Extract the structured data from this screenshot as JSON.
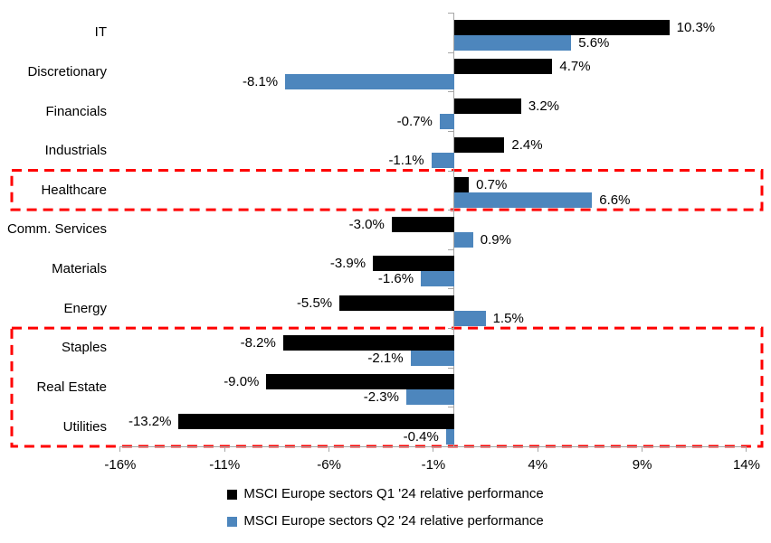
{
  "chart_data": {
    "type": "bar",
    "orientation": "horizontal",
    "title": "",
    "categories": [
      "IT",
      "Discretionary",
      "Financials",
      "Industrials",
      "Healthcare",
      "Comm. Services",
      "Materials",
      "Energy",
      "Staples",
      "Real Estate",
      "Utilities"
    ],
    "series": [
      {
        "name": "MSCI Europe sectors Q1 '24 relative performance",
        "color": "#000000",
        "values": [
          10.3,
          4.7,
          3.2,
          2.4,
          0.7,
          -3.0,
          -3.9,
          -5.5,
          -8.2,
          -9.0,
          -13.2
        ],
        "labels": [
          "10.3%",
          "4.7%",
          "3.2%",
          "2.4%",
          "0.7%",
          "-3.0%",
          "-3.9%",
          "-5.5%",
          "-8.2%",
          "-9.0%",
          "-13.2%"
        ]
      },
      {
        "name": "MSCI Europe sectors Q2 '24 relative performance",
        "color": "#4D86BD",
        "values": [
          5.6,
          -8.1,
          -0.7,
          -1.1,
          6.6,
          0.9,
          -1.6,
          1.5,
          -2.1,
          -2.3,
          -0.4
        ],
        "labels": [
          "5.6%",
          "-8.1%",
          "-0.7%",
          "-1.1%",
          "6.6%",
          "0.9%",
          "-1.6%",
          "1.5%",
          "-2.1%",
          "-2.3%",
          "-0.4%"
        ]
      }
    ],
    "x_axis": {
      "tick_labels": [
        "-16%",
        "-11%",
        "-6%",
        "-1%",
        "4%",
        "9%",
        "14%"
      ],
      "tick_values": [
        -16,
        -11,
        -6,
        -1,
        4,
        9,
        14
      ],
      "range": [
        -16,
        14
      ]
    },
    "ylabel": "",
    "xlabel": "",
    "gridlines": false,
    "legend_position": "bottom",
    "annotations": {
      "highlight_color": "#FF0000",
      "style": "dashed-rectangle",
      "boxes": [
        {
          "sectors": [
            "Healthcare"
          ],
          "row_start": 4,
          "row_end": 4
        },
        {
          "sectors": [
            "Staples",
            "Real Estate",
            "Utilities"
          ],
          "row_start": 8,
          "row_end": 10
        }
      ]
    },
    "axis_color": "#a6a6a6"
  }
}
